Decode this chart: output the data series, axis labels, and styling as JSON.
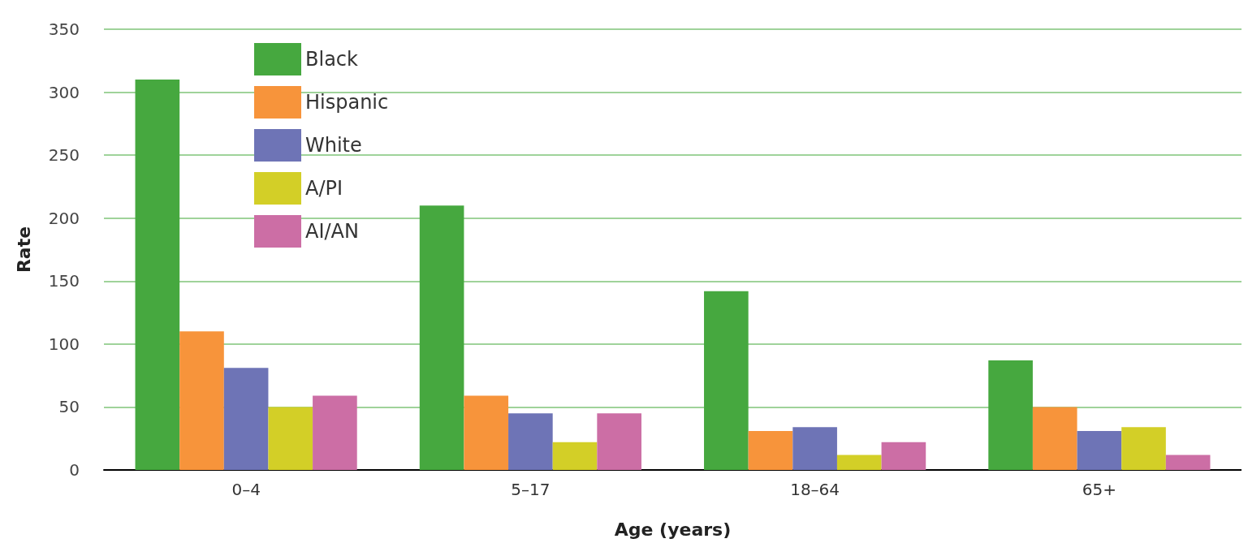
{
  "chart_data": {
    "type": "bar",
    "xlabel": "Age (years)",
    "ylabel": "Rate",
    "categories": [
      "0–4",
      "5–17",
      "18–64",
      "65+"
    ],
    "series": [
      {
        "name": "Black",
        "color": "#46a83f",
        "values": [
          310,
          210,
          142,
          87
        ]
      },
      {
        "name": "Hispanic",
        "color": "#f7943b",
        "values": [
          110,
          59,
          31,
          50
        ]
      },
      {
        "name": "White",
        "color": "#6e74b6",
        "values": [
          81,
          45,
          34,
          31
        ]
      },
      {
        "name": "A/PI",
        "color": "#d3cf27",
        "values": [
          50,
          22,
          12,
          34
        ]
      },
      {
        "name": "AI/AN",
        "color": "#cc6ea5",
        "values": [
          59,
          45,
          22,
          12
        ]
      }
    ],
    "ylim": [
      0,
      350
    ],
    "yticks": [
      0,
      50,
      100,
      150,
      200,
      250,
      300,
      350
    ],
    "grid": "y",
    "legend": "top left"
  }
}
